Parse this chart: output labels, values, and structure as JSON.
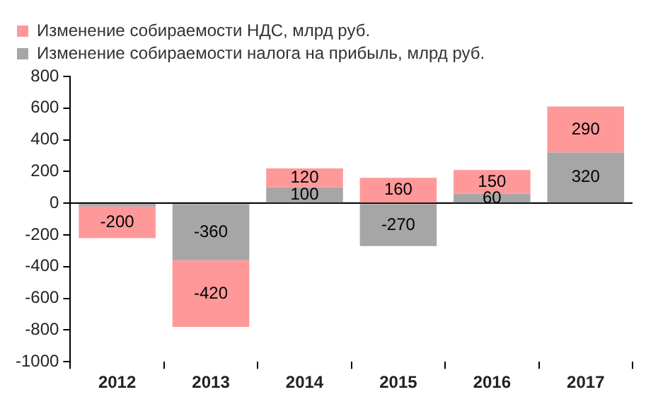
{
  "chart_data": {
    "type": "bar",
    "stacked": true,
    "categories": [
      "2012",
      "2013",
      "2014",
      "2015",
      "2016",
      "2017"
    ],
    "series": [
      {
        "name": "Изменение собираемости налога на прибыль, млрд руб.",
        "color": "#a6a6a6",
        "values": [
          -20,
          -360,
          100,
          -270,
          60,
          320
        ],
        "value_labels": [
          null,
          "-360",
          "100",
          "-270",
          "60",
          "320"
        ]
      },
      {
        "name": "Изменение собираемости НДС, млрд руб.",
        "color": "#ff9999",
        "values": [
          -200,
          -420,
          120,
          160,
          150,
          290
        ],
        "value_labels": [
          "-200",
          "-420",
          "120",
          "160",
          "150",
          "290"
        ]
      }
    ],
    "ylim": [
      -1000,
      800
    ],
    "yticks": [
      -1000,
      -800,
      -600,
      -400,
      -200,
      0,
      200,
      400,
      600,
      800
    ],
    "legend": "top left"
  }
}
